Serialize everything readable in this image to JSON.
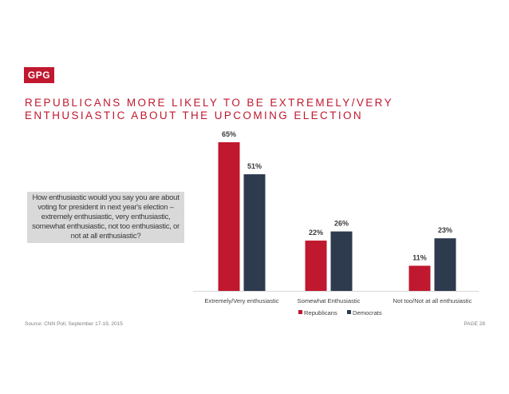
{
  "logo": {
    "text": "GPG"
  },
  "title": {
    "line1": "REPUBLICANS MORE LIKELY TO BE EXTREMELY/VERY",
    "line2": "ENTHUSIASTIC ABOUT THE UPCOMING ELECTION"
  },
  "question": "How enthusiastic would you say you are about voting for president in next year's election – extremely enthusiastic, very enthusiastic, somewhat enthusiastic, not too enthusiastic, or not at all enthusiastic?",
  "footer": {
    "source": "Source: CNN Poll, September 17-19, 2015",
    "page": "PAGE 28"
  },
  "colors": {
    "republicans": "#c0182f",
    "democrats": "#2e3a4e",
    "brand": "#c0182f"
  },
  "chart_data": {
    "type": "bar",
    "categories": [
      "Extremely/Very enthusiastic",
      "Somewhat Enthusiastic",
      "Not too/Not at all enthusiastic"
    ],
    "series": [
      {
        "name": "Republicans",
        "values": [
          65,
          22,
          11
        ],
        "labels": [
          "65%",
          "22%",
          "11%"
        ],
        "color": "#c0182f"
      },
      {
        "name": "Democrats",
        "values": [
          51,
          26,
          23
        ],
        "labels": [
          "51%",
          "26%",
          "23%"
        ],
        "color": "#2e3a4e"
      }
    ],
    "ylim": [
      0,
      70
    ],
    "grid": false,
    "legend": "bottom-center",
    "xlabel": "",
    "ylabel": ""
  }
}
